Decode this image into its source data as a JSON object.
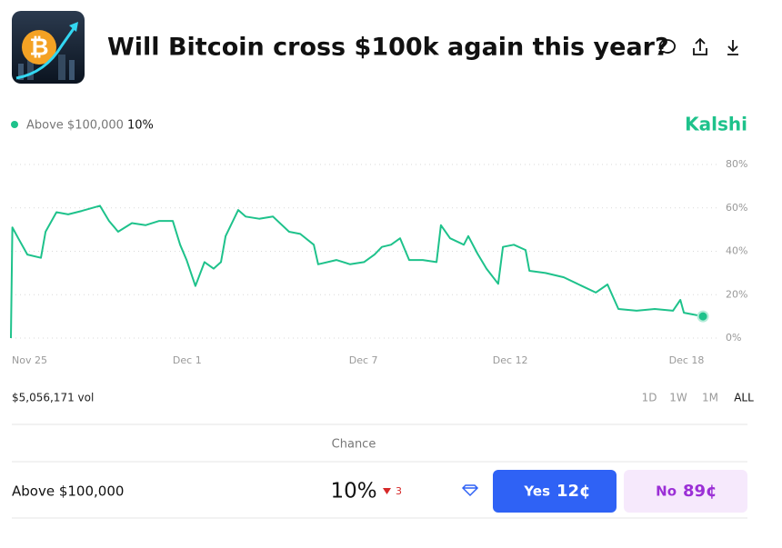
{
  "header": {
    "title": "Will Bitcoin cross $100k again this year?"
  },
  "brand": "Kalshi",
  "legend_value": "10%",
  "chart_data": {
    "type": "line",
    "series": [
      {
        "name": "Above $100,000",
        "color": "#1ec28b",
        "x": [
          0,
          0.05,
          0.25,
          0.56,
          1.02,
          1.18,
          1.55,
          1.95,
          2.41,
          3.03,
          3.34,
          3.65,
          4.12,
          4.58,
          5.05,
          5.51,
          5.76,
          5.98,
          6.28,
          6.59,
          6.9,
          7.15,
          7.31,
          7.74,
          7.99,
          8.45,
          8.92,
          9.47,
          9.85,
          10.31,
          10.46,
          11.08,
          11.55,
          12.02,
          12.38,
          12.63,
          12.94,
          13.25,
          13.56,
          14.02,
          14.49,
          14.64,
          14.95,
          15.42,
          15.57,
          15.88,
          16.19,
          16.59,
          16.75,
          17.12,
          17.52,
          17.65,
          18.2,
          18.82,
          19.44,
          19.91,
          20.31,
          20.68,
          21.3,
          21.92,
          22.54,
          22.79,
          22.91,
          23.56
        ],
        "values": [
          0,
          51,
          46,
          38.5,
          37,
          49,
          58,
          57,
          58.6,
          61,
          54,
          49,
          53,
          52,
          54,
          54,
          43,
          36,
          24,
          35,
          32,
          35,
          47,
          59,
          56,
          55,
          56,
          49,
          48,
          43,
          34,
          36,
          34,
          35,
          38.5,
          42,
          43,
          46,
          36,
          36,
          35,
          52,
          46,
          43,
          47,
          39,
          32,
          25,
          42,
          43,
          40.6,
          31,
          30,
          28,
          24,
          21,
          24.7,
          13.4,
          12.6,
          13.4,
          12.6,
          17.6,
          11.7,
          10
        ]
      }
    ],
    "xlim": [
      0,
      24.3
    ],
    "xticks": [
      {
        "value": 0,
        "label": "Nov 25"
      },
      {
        "value": 6,
        "label": "Dec 1"
      },
      {
        "value": 12,
        "label": "Dec 7"
      },
      {
        "value": 17,
        "label": "Dec 12"
      },
      {
        "value": 23,
        "label": "Dec 18"
      }
    ],
    "ylim": [
      0,
      80
    ],
    "yticks": [
      {
        "value": 0,
        "label": "0%"
      },
      {
        "value": 20,
        "label": "20%"
      },
      {
        "value": 40,
        "label": "40%"
      },
      {
        "value": 60,
        "label": "60%"
      },
      {
        "value": 80,
        "label": "80%"
      }
    ],
    "grid": true
  },
  "volume": "$5,056,171 vol",
  "ranges": [
    "1D",
    "1W",
    "1M",
    "ALL"
  ],
  "table": {
    "header": "Chance",
    "row": {
      "name": "Above $100,000",
      "chance": "10%",
      "change": "3",
      "yes_label": "Yes",
      "yes_price": "12¢",
      "no_label": "No",
      "no_price": "89¢"
    }
  }
}
